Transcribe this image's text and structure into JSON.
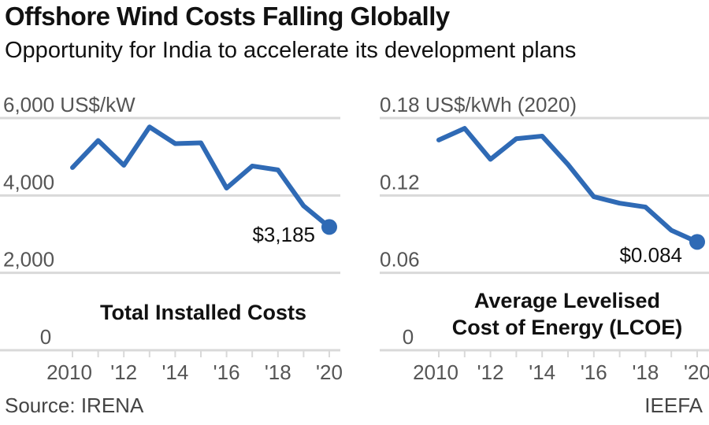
{
  "header": {
    "title": "Offshore Wind Costs Falling Globally",
    "subtitle": "Opportunity for India to accelerate its development plans"
  },
  "footer": {
    "source": "Source: IRENA",
    "brand": "IEEFA"
  },
  "colors": {
    "line": "#2f6ab5",
    "grid": "#d9d9d9",
    "tick_text": "#555555"
  },
  "chart_data": [
    {
      "type": "line",
      "title": "Total Installed Costs",
      "ylabel": "US$/kW",
      "ylim": [
        0,
        6000
      ],
      "yticks": [
        0,
        2000,
        4000,
        6000
      ],
      "ytick_labels": [
        "0",
        "2,000",
        "4,000",
        "6,000 US$/kW"
      ],
      "x": [
        2010,
        2011,
        2012,
        2013,
        2014,
        2015,
        2016,
        2017,
        2018,
        2019,
        2020
      ],
      "xtick_labels": [
        "2010",
        "'12",
        "'14",
        "'16",
        "'18",
        "'20"
      ],
      "values": [
        4720,
        5420,
        4780,
        5770,
        5340,
        5360,
        4190,
        4760,
        4660,
        3730,
        3185
      ],
      "annotation": "$3,185",
      "grid": true
    },
    {
      "type": "line",
      "title": "Average Levelised Cost of Energy (LCOE)",
      "title_lines": [
        "Average Levelised",
        "Cost of Energy (LCOE)"
      ],
      "ylabel": "US$/kWh (2020)",
      "ylim": [
        0,
        0.18
      ],
      "yticks": [
        0,
        0.06,
        0.12,
        0.18
      ],
      "ytick_labels": [
        "0",
        "0.06",
        "0.12",
        "0.18 US$/kWh (2020)"
      ],
      "x": [
        2010,
        2011,
        2012,
        2013,
        2014,
        2015,
        2016,
        2017,
        2018,
        2019,
        2020
      ],
      "xtick_labels": [
        "2010",
        "'12",
        "'14",
        "'16",
        "'18",
        "'20"
      ],
      "values": [
        0.163,
        0.172,
        0.148,
        0.164,
        0.166,
        0.144,
        0.119,
        0.114,
        0.111,
        0.093,
        0.084
      ],
      "annotation": "$0.084",
      "grid": true
    }
  ]
}
